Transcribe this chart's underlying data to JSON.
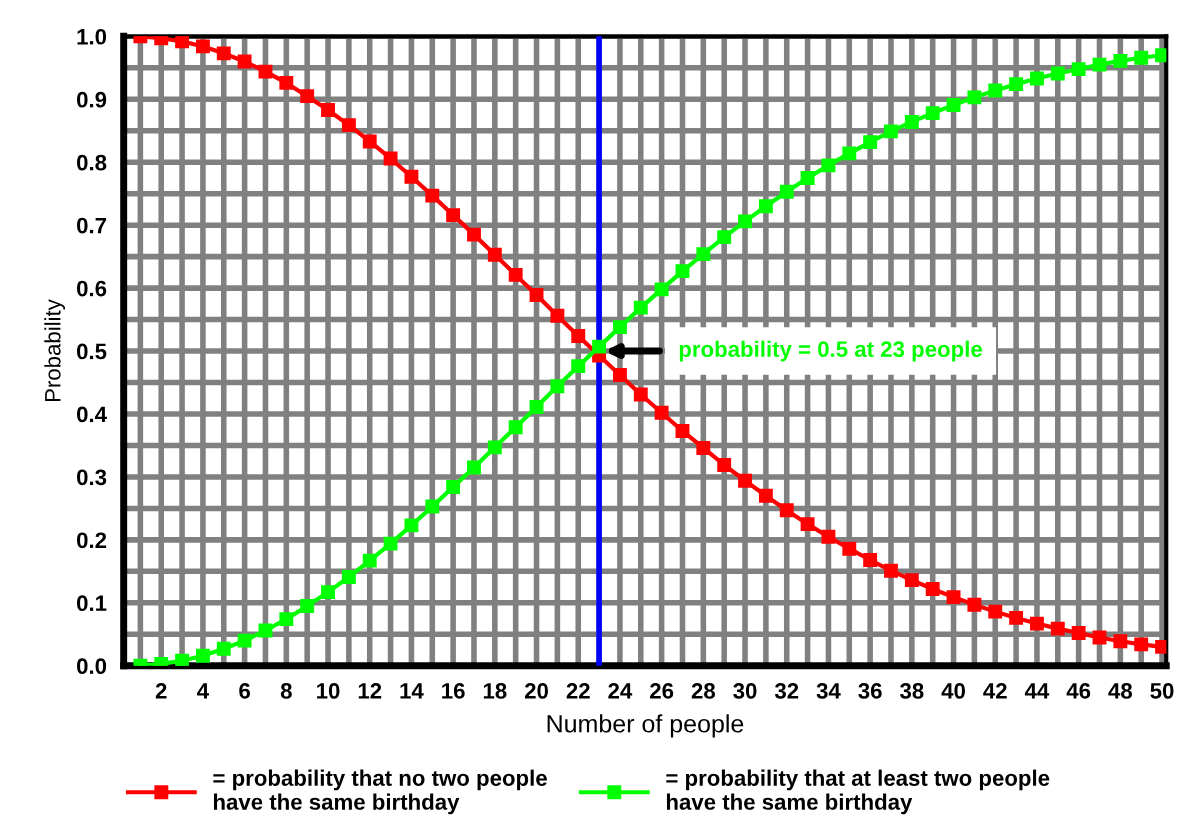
{
  "chart_data": {
    "type": "line",
    "xlabel": "Number of people",
    "ylabel": "Probability",
    "x": [
      1,
      2,
      3,
      4,
      5,
      6,
      7,
      8,
      9,
      10,
      11,
      12,
      13,
      14,
      15,
      16,
      17,
      18,
      19,
      20,
      21,
      22,
      23,
      24,
      25,
      26,
      27,
      28,
      29,
      30,
      31,
      32,
      33,
      34,
      35,
      36,
      37,
      38,
      39,
      40,
      41,
      42,
      43,
      44,
      45,
      46,
      47,
      48,
      49,
      50
    ],
    "series": [
      {
        "name": "= probability that no two people\nhave the same birthday",
        "color": "#ff0000",
        "values": [
          1.0,
          0.997,
          0.992,
          0.984,
          0.973,
          0.96,
          0.944,
          0.926,
          0.905,
          0.883,
          0.859,
          0.833,
          0.806,
          0.777,
          0.747,
          0.716,
          0.685,
          0.653,
          0.621,
          0.589,
          0.556,
          0.524,
          0.493,
          0.462,
          0.431,
          0.402,
          0.373,
          0.346,
          0.319,
          0.294,
          0.27,
          0.247,
          0.225,
          0.205,
          0.186,
          0.168,
          0.151,
          0.136,
          0.122,
          0.109,
          0.097,
          0.086,
          0.076,
          0.067,
          0.059,
          0.052,
          0.045,
          0.039,
          0.034,
          0.03
        ]
      },
      {
        "name": "= probability that at least two people\nhave the same birthday",
        "color": "#00ff00",
        "values": [
          0.0,
          0.003,
          0.008,
          0.016,
          0.027,
          0.04,
          0.056,
          0.074,
          0.095,
          0.117,
          0.141,
          0.167,
          0.194,
          0.223,
          0.253,
          0.284,
          0.315,
          0.347,
          0.379,
          0.411,
          0.444,
          0.476,
          0.507,
          0.538,
          0.569,
          0.598,
          0.627,
          0.654,
          0.681,
          0.706,
          0.73,
          0.753,
          0.775,
          0.795,
          0.814,
          0.832,
          0.849,
          0.864,
          0.878,
          0.891,
          0.903,
          0.914,
          0.924,
          0.933,
          0.941,
          0.948,
          0.955,
          0.961,
          0.966,
          0.97
        ]
      }
    ],
    "xlim": [
      0.2,
      50.2
    ],
    "xticks": [
      {
        "value": 1,
        "label": null
      },
      2,
      {
        "value": 3,
        "label": null
      },
      4,
      {
        "value": 5,
        "label": null
      },
      6,
      {
        "value": 7,
        "label": null
      },
      8,
      {
        "value": 9,
        "label": null
      },
      10,
      {
        "value": 11,
        "label": null
      },
      12,
      {
        "value": 13,
        "label": null
      },
      14,
      {
        "value": 15,
        "label": null
      },
      16,
      {
        "value": 17,
        "label": null
      },
      18,
      {
        "value": 19,
        "label": null
      },
      20,
      {
        "value": 21,
        "label": null
      },
      22,
      {
        "value": 23,
        "label": null
      },
      24,
      {
        "value": 25,
        "label": null
      },
      26,
      {
        "value": 27,
        "label": null
      },
      28,
      {
        "value": 29,
        "label": null
      },
      30,
      {
        "value": 31,
        "label": null
      },
      32,
      {
        "value": 33,
        "label": null
      },
      34,
      {
        "value": 35,
        "label": null
      },
      36,
      {
        "value": 37,
        "label": null
      },
      38,
      {
        "value": 39,
        "label": null
      },
      40,
      {
        "value": 41,
        "label": null
      },
      42,
      {
        "value": 43,
        "label": null
      },
      44,
      {
        "value": 45,
        "label": null
      },
      46,
      {
        "value": 47,
        "label": null
      },
      48,
      {
        "value": 49,
        "label": null
      },
      50
    ],
    "ylim": [
      0,
      1
    ],
    "yticks": [
      {
        "value": 0,
        "label": "0.0"
      },
      {
        "value": 0.05,
        "label": null
      },
      0.1,
      {
        "value": 0.15,
        "label": null
      },
      0.2,
      {
        "value": 0.25,
        "label": null
      },
      0.3,
      {
        "value": 0.35,
        "label": null
      },
      0.4,
      {
        "value": 0.45,
        "label": null
      },
      0.5,
      {
        "value": 0.55,
        "label": null
      },
      0.6,
      {
        "value": 0.65,
        "label": null
      },
      0.7,
      {
        "value": 0.75,
        "label": null
      },
      0.8,
      {
        "value": 0.85,
        "label": null
      },
      0.9,
      {
        "value": 0.95,
        "label": null
      },
      {
        "value": 1,
        "label": "1.0"
      }
    ],
    "ref_lines": [
      {
        "axis": "x",
        "value": 23,
        "color": "#0000ff"
      }
    ],
    "annotations": [
      {
        "text": "probability = 0.5 at 23 people",
        "x": 23,
        "y": 0.5
      }
    ],
    "grid": true,
    "legend": "bottom",
    "marker": "square",
    "line_style": "solid"
  }
}
